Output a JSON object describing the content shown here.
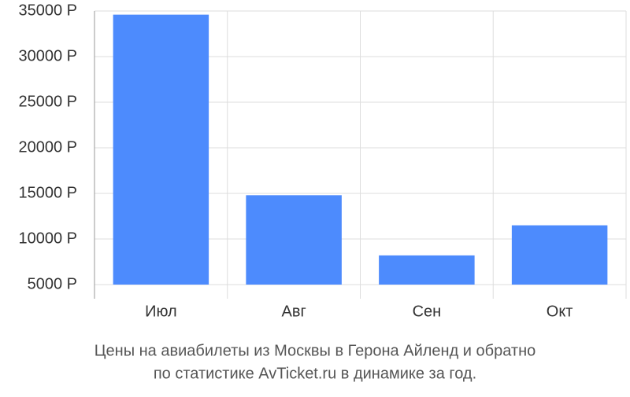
{
  "chart_data": {
    "type": "bar",
    "title": [
      "Цены на авиабилеты из Москвы в Герона Айленд и обратно",
      "по статистике AvTicket.ru в динамике за год."
    ],
    "categories": [
      "Июл",
      "Авг",
      "Сен",
      "Окт"
    ],
    "values": [
      34600,
      14800,
      8200,
      11500
    ],
    "color": "#4d8bfd",
    "ylim": [
      5000,
      35000
    ],
    "yticks": [
      {
        "value": 5000,
        "label": "5000 Р"
      },
      {
        "value": 10000,
        "label": "10000 Р"
      },
      {
        "value": 15000,
        "label": "15000 Р"
      },
      {
        "value": 20000,
        "label": "20000 Р"
      },
      {
        "value": 25000,
        "label": "25000 Р"
      },
      {
        "value": 30000,
        "label": "30000 Р"
      },
      {
        "value": 35000,
        "label": "35000 Р"
      }
    ],
    "grid": true
  }
}
